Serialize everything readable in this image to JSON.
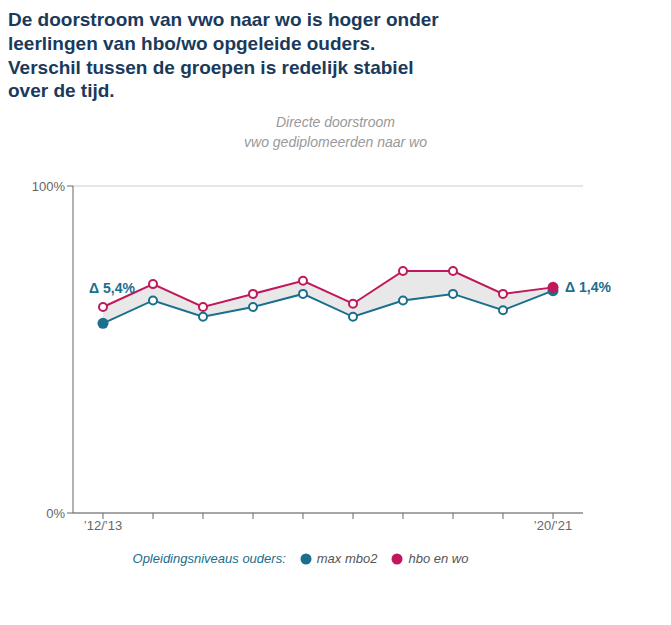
{
  "chart_data": {
    "type": "line",
    "title": "De doorstroom van vwo naar wo is hoger onder\nleerlingen van hbo/wo opgeleide ouders.\nVerschil tussen de groepen is redelijk stabiel\nover de tijd.",
    "subtitle": "Directe doorstroom\nvwo gediplomeerden naar wo",
    "categories": [
      "’12/’13",
      null,
      null,
      null,
      null,
      null,
      null,
      null,
      null,
      "’20/’21"
    ],
    "series": [
      {
        "name": "max mbo2",
        "color": "#1a6e8e",
        "marker": "circle",
        "values": [
          58,
          65,
          60,
          63,
          67,
          60,
          65,
          67,
          62,
          68
        ]
      },
      {
        "name": "hbo en wo",
        "color": "#c0185a",
        "marker": "circle",
        "values": [
          63,
          70,
          63,
          67,
          71,
          64,
          74,
          74,
          67,
          69
        ]
      }
    ],
    "ylim": [
      0,
      100
    ],
    "yticks": [
      {
        "value": 0,
        "label": "0%"
      },
      {
        "value": 100,
        "label": "100%"
      }
    ],
    "grid": true,
    "legend": "bottom",
    "legend_title": "Opleidingsniveaus ouders:",
    "annotations": [
      {
        "text": "Δ 5,4%"
      },
      {
        "text": "Δ 1,4%"
      }
    ]
  }
}
